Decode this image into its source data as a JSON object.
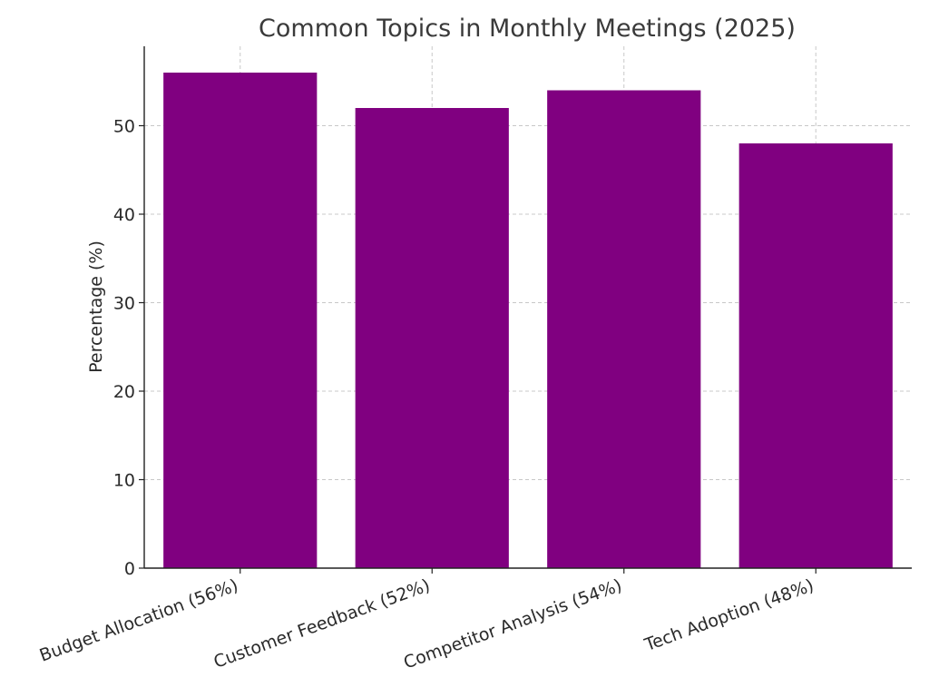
{
  "chart_data": {
    "type": "bar",
    "title": "Common Topics in Monthly Meetings (2025)",
    "xlabel": "",
    "ylabel": "Percentage (%)",
    "categories": [
      "Budget Allocation (56%)",
      "Customer Feedback (52%)",
      "Competitor Analysis (54%)",
      "Tech Adoption (48%)"
    ],
    "values": [
      56,
      52,
      54,
      48
    ],
    "ylim": [
      0,
      58.8
    ],
    "yticks": [
      "0",
      "10",
      "20",
      "30",
      "40",
      "50"
    ],
    "grid": true,
    "bar_color": "#800080"
  }
}
